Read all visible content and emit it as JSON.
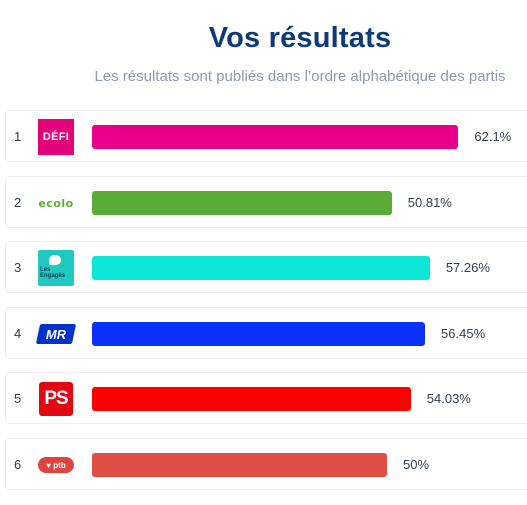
{
  "header": {
    "title": "Vos résultats",
    "subtitle": "Les résultats sont publiés dans l’ordre alphabétique des partis"
  },
  "results": [
    {
      "rank": "1",
      "party": "défi",
      "logo_text": "DÉFI",
      "percent": 62.1,
      "percent_label": "62.1%",
      "color": "#e8008a"
    },
    {
      "rank": "2",
      "party": "ecolo",
      "logo_text": "ecolo",
      "percent": 50.81,
      "percent_label": "50.81%",
      "color": "#5aab37"
    },
    {
      "rank": "3",
      "party": "engagés",
      "logo_text": "Les Engagés",
      "percent": 57.26,
      "percent_label": "57.26%",
      "color": "#0ce6d6"
    },
    {
      "rank": "4",
      "party": "mr",
      "logo_text": "MR",
      "percent": 56.45,
      "percent_label": "56.45%",
      "color": "#0a31ff"
    },
    {
      "rank": "5",
      "party": "ps",
      "logo_text": "PS",
      "percent": 54.03,
      "percent_label": "54.03%",
      "color": "#ff0000"
    },
    {
      "rank": "6",
      "party": "ptb",
      "logo_text": "ptb",
      "percent": 50,
      "percent_label": "50%",
      "color": "#df4f46"
    }
  ]
}
